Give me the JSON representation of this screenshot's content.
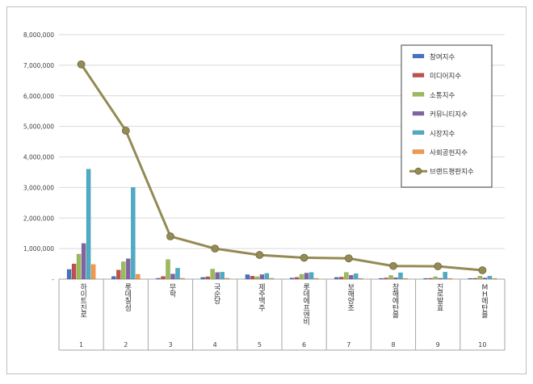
{
  "chart_data": {
    "type": "bar+line",
    "title": "",
    "xlabel": "",
    "ylabel": "",
    "ylim": [
      0,
      8000000
    ],
    "yticks": [
      "-",
      "1,000,000",
      "2,000,000",
      "3,000,000",
      "4,000,000",
      "5,000,000",
      "6,000,000",
      "7,000,000",
      "8,000,000"
    ],
    "grid": true,
    "legend_position": "top-right",
    "categories": [
      "하이트진로",
      "롯데칠성",
      "무학",
      "국순당",
      "제주맥주",
      "롯데에프엔비",
      "보해양조",
      "창해에탄올",
      "진로발효",
      "MH에탄올"
    ],
    "ranks": [
      "1",
      "2",
      "3",
      "4",
      "5",
      "6",
      "7",
      "8",
      "9",
      "10"
    ],
    "series": [
      {
        "name": "참여지수",
        "type": "bar",
        "color": "#4472C4",
        "values": [
          320000,
          90000,
          30000,
          60000,
          150000,
          40000,
          60000,
          20000,
          15000,
          20000
        ]
      },
      {
        "name": "미디어지수",
        "type": "bar",
        "color": "#C0504D",
        "values": [
          500000,
          300000,
          90000,
          80000,
          100000,
          60000,
          70000,
          40000,
          30000,
          30000
        ]
      },
      {
        "name": "소통지수",
        "type": "bar",
        "color": "#9BBB59",
        "values": [
          820000,
          570000,
          640000,
          330000,
          80000,
          160000,
          220000,
          120000,
          80000,
          100000
        ]
      },
      {
        "name": "커뮤니티지수",
        "type": "bar",
        "color": "#8064A2",
        "values": [
          1170000,
          670000,
          170000,
          220000,
          150000,
          200000,
          130000,
          50000,
          30000,
          40000
        ]
      },
      {
        "name": "시장지수",
        "type": "bar",
        "color": "#4BACC6",
        "values": [
          3600000,
          3000000,
          360000,
          230000,
          190000,
          220000,
          180000,
          210000,
          230000,
          100000
        ]
      },
      {
        "name": "사회공헌지수",
        "type": "bar",
        "color": "#F79646",
        "values": [
          480000,
          160000,
          30000,
          30000,
          30000,
          20000,
          20000,
          20000,
          20000,
          10000
        ]
      },
      {
        "name": "브랜드평판지수",
        "type": "line",
        "color": "#948A54",
        "values": [
          7030000,
          4860000,
          1400000,
          1000000,
          790000,
          700000,
          680000,
          430000,
          420000,
          290000
        ]
      }
    ]
  }
}
